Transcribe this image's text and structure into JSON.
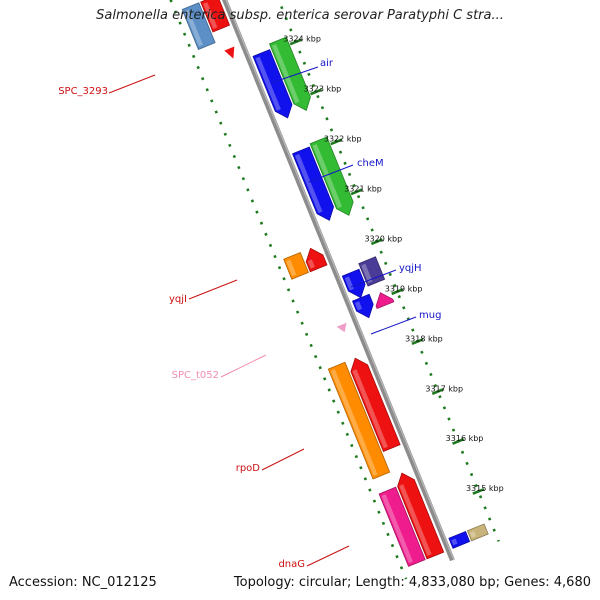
{
  "title": "Salmonella enterica subsp. enterica serovar Paratyphi C stra...",
  "footer": {
    "accession": "Accession: NC_012125",
    "summary": "Topology: circular; Length: 4,833,080 bp; Genes: 4,680"
  },
  "colors": {
    "backbone": "#8c8c8c",
    "tick": "#1e7a1e",
    "forward_label": "#1515c8",
    "reverse_label": "#cc1111",
    "rna_label": "#f08cb4"
  },
  "kbp_ticks": [
    {
      "kb": 3324,
      "label": "3324 kbp"
    },
    {
      "kb": 3323,
      "label": "3323 kbp"
    },
    {
      "kb": 3322,
      "label": "3322 kbp"
    },
    {
      "kb": 3321,
      "label": "3321 kbp"
    },
    {
      "kb": 3320,
      "label": "3320 kbp"
    },
    {
      "kb": 3319,
      "label": "3319 kbp"
    },
    {
      "kb": 3318,
      "label": "3318 kbp"
    },
    {
      "kb": 3317,
      "label": "3317 kbp"
    },
    {
      "kb": 3316,
      "label": "3316 kbp"
    },
    {
      "kb": 3315,
      "label": "3315 kbp"
    }
  ],
  "features": [
    {
      "kb1": 3325.35,
      "kb2": 3324.55,
      "lane": -1,
      "color": "#5b8fc6",
      "dir": "none"
    },
    {
      "kb1": 3325.35,
      "kb2": 3324.75,
      "lane": 0,
      "color": "#ee1111",
      "dir": "none"
    },
    {
      "kb1": 3324.35,
      "kb2": 3324.15,
      "lane": 0,
      "color": "#ee1111",
      "dir": "tip"
    },
    {
      "kb1": 3324.05,
      "kb2": 3322.75,
      "lane": 1,
      "color": "#1111ee",
      "dir": "down"
    },
    {
      "kb1": 3324.15,
      "kb2": 3322.75,
      "lane": 2,
      "color": "#33bb33",
      "dir": "down"
    },
    {
      "kb1": 3322.1,
      "kb2": 3320.7,
      "lane": 1,
      "color": "#1111ee",
      "dir": "down"
    },
    {
      "kb1": 3322.15,
      "kb2": 3320.65,
      "lane": 2,
      "color": "#33bb33",
      "dir": "down"
    },
    {
      "kb1": 3320.35,
      "kb2": 3319.95,
      "lane": -1,
      "color": "#ff8c00",
      "dir": "none"
    },
    {
      "kb1": 3320.35,
      "kb2": 3319.95,
      "lane": 0,
      "color": "#ee1111",
      "dir": "up"
    },
    {
      "kb1": 3319.65,
      "kb2": 3319.15,
      "lane": 1,
      "color": "#1111ee",
      "dir": "down"
    },
    {
      "kb1": 3319.75,
      "kb2": 3319.3,
      "lane": 2,
      "color": "#4a3c96",
      "dir": "none"
    },
    {
      "kb1": 3319.15,
      "kb2": 3318.75,
      "lane": 1,
      "color": "#1111ee",
      "dir": "down"
    },
    {
      "kb1": 3319.1,
      "kb2": 3318.85,
      "lane": 2,
      "color": "#ee1c8c",
      "dir": "up"
    },
    {
      "kb1": 3318.82,
      "kb2": 3318.67,
      "lane": 0,
      "color": "#f0a0c8",
      "dir": "tip"
    },
    {
      "kb1": 3318.15,
      "kb2": 3315.95,
      "lane": -1,
      "color": "#ff8c00",
      "dir": "none"
    },
    {
      "kb1": 3318.15,
      "kb2": 3316.35,
      "lane": 0,
      "color": "#ee1111",
      "dir": "up"
    },
    {
      "kb1": 3315.65,
      "kb2": 3314.2,
      "lane": -1,
      "color": "#ee1c8c",
      "dir": "none"
    },
    {
      "kb1": 3315.85,
      "kb2": 3314.2,
      "lane": 0,
      "color": "#ee1111",
      "dir": "up"
    },
    {
      "kb1": 3314.4,
      "kb2": 3314.2,
      "lane": 1,
      "color": "#1111ee",
      "dir": "none"
    },
    {
      "kb1": 3314.4,
      "kb2": 3314.2,
      "lane": 2,
      "color": "#c8b47a",
      "dir": "none"
    }
  ],
  "gene_labels": [
    {
      "text": "air",
      "color": "#1515c8"
    },
    {
      "text": "cheM",
      "color": "#1515c8"
    },
    {
      "text": "yqjH",
      "color": "#1515c8"
    },
    {
      "text": "mug",
      "color": "#1515c8"
    },
    {
      "text": "SPC_3293",
      "color": "#cc1111"
    },
    {
      "text": "yqjI",
      "color": "#cc1111"
    },
    {
      "text": "SPC_t052",
      "color": "#f08cb4"
    },
    {
      "text": "rpoD",
      "color": "#cc1111"
    },
    {
      "text": "dnaG",
      "color": "#cc1111"
    }
  ]
}
